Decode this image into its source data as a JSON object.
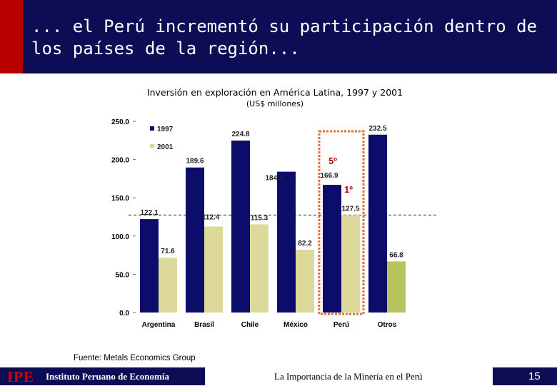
{
  "header": {
    "title": "... el Perú incrementó su participación dentro de los países de la región..."
  },
  "source": "Fuente: Metals Economics Group",
  "footer": {
    "logo": "IPE",
    "organization": "Instituto Peruano de Economía",
    "document": "La Importancia de la Minería en el Perú",
    "page": "15"
  },
  "colors": {
    "series_1997": "#0c0d6b",
    "series_2001": "#dcd99a",
    "highlight_2001": "#b8c45e",
    "highlight_box": "#e07030",
    "header_bg": "#0c0d55",
    "accent": "#b80000"
  },
  "chart_data": {
    "type": "bar",
    "title": "Inversión en exploración en América Latina, 1997 y 2001",
    "subtitle": "(US$ millones)",
    "xlabel": "",
    "ylabel": "",
    "ylim": [
      0,
      250
    ],
    "yticks": [
      "250.0",
      "200.0",
      "150.0",
      "100.0",
      "50.0",
      "0.0"
    ],
    "categories": [
      "Argentina",
      "Brasil",
      "Chile",
      "México",
      "Perú",
      "Otros"
    ],
    "series": [
      {
        "name": "1997",
        "values": [
          122.1,
          189.6,
          224.8,
          184.1,
          166.9,
          232.5
        ],
        "labels": [
          "122.1",
          "189.6",
          "224.8",
          "184.1",
          "166.9",
          "232.5"
        ]
      },
      {
        "name": "2001",
        "values": [
          71.6,
          112.4,
          115.3,
          82.2,
          127.5,
          66.8
        ],
        "labels": [
          "71.6",
          "112.4",
          "115.3",
          "82.2",
          "127.5",
          "66.8"
        ]
      }
    ],
    "legend": "top-left",
    "reference_line": {
      "value": 127.5,
      "style": "dashed"
    },
    "highlight": {
      "category": "Perú",
      "annotations": [
        "5º",
        "1º"
      ]
    }
  }
}
